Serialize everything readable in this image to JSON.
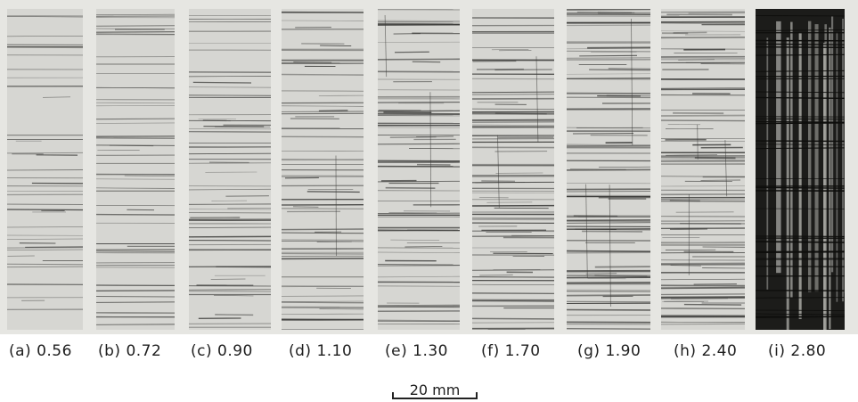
{
  "specimens": [
    {
      "label": "(a) 0.56",
      "value": 0.56,
      "crack_density": 0.25
    },
    {
      "label": "(b) 0.72",
      "value": 0.72,
      "crack_density": 0.35
    },
    {
      "label": "(c) 0.90",
      "value": 0.9,
      "crack_density": 0.45
    },
    {
      "label": "(d) 1.10",
      "value": 1.1,
      "crack_density": 0.55
    },
    {
      "label": "(e) 1.30",
      "value": 1.3,
      "crack_density": 0.65
    },
    {
      "label": "(f) 1.70",
      "value": 1.7,
      "crack_density": 0.78
    },
    {
      "label": "(g) 1.90",
      "value": 1.9,
      "crack_density": 0.85
    },
    {
      "label": "(h) 2.40",
      "value": 2.4,
      "crack_density": 0.95
    },
    {
      "label": "(i) 2.80",
      "value": 2.8,
      "crack_density": 1.0
    }
  ],
  "scale_bar": {
    "label": "20 mm"
  },
  "colors": {
    "background_gap": "#e6e6e2",
    "specimen_surface": "#d6d6d2",
    "crack": "#3a3a38",
    "damaged_dark": "#1c1c1a"
  }
}
